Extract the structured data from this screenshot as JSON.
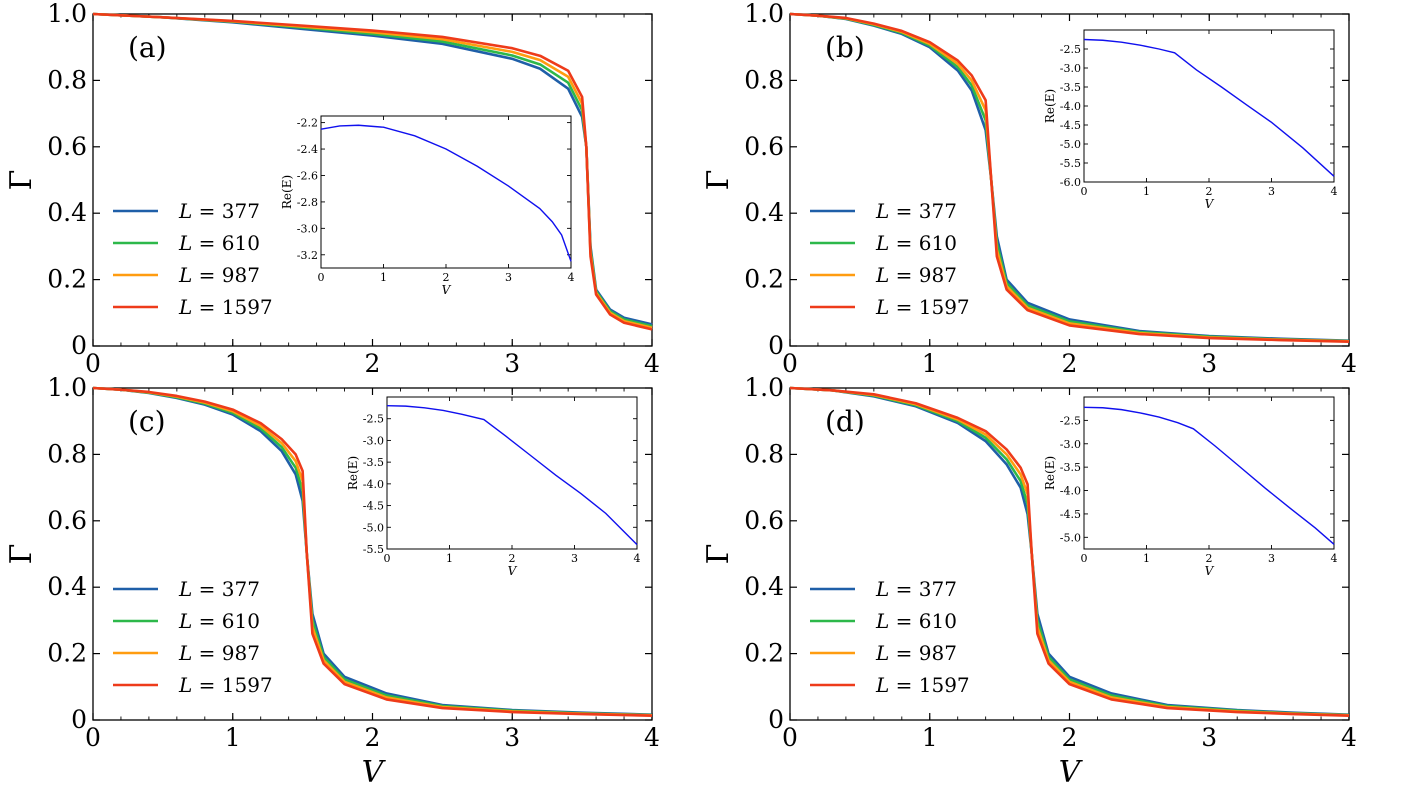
{
  "colors": {
    "L377": "#1f5fa8",
    "L610": "#2db84a",
    "L987": "#ff9c10",
    "L1597": "#ee3b1a",
    "inset_line": "#1010ee",
    "axes": "#000000"
  },
  "chart_data": [
    {
      "type": "line",
      "panel_label": "(a)",
      "xlabel": "",
      "ylabel": "Γ",
      "xlim": [
        0,
        4
      ],
      "ylim": [
        0,
        1.0
      ],
      "xticks": [
        "0",
        "1",
        "2",
        "3",
        "4"
      ],
      "yticks": [
        "0",
        "0.2",
        "0.4",
        "0.6",
        "0.8",
        "1.0"
      ],
      "legend": [
        "L = 377",
        "L = 610",
        "L = 987",
        "L = 1597"
      ],
      "transition": 3.53,
      "series": [
        {
          "name": "L = 377",
          "x": [
            0,
            0.5,
            1,
            1.5,
            2,
            2.5,
            3,
            3.2,
            3.4,
            3.5,
            3.53,
            3.56,
            3.6,
            3.7,
            3.8,
            4.0
          ],
          "y": [
            1.0,
            0.99,
            0.975,
            0.955,
            0.935,
            0.91,
            0.865,
            0.835,
            0.775,
            0.69,
            0.6,
            0.3,
            0.17,
            0.11,
            0.085,
            0.065
          ]
        },
        {
          "name": "L = 610",
          "x": [
            0,
            0.5,
            1,
            1.5,
            2,
            2.5,
            3,
            3.2,
            3.4,
            3.5,
            3.53,
            3.56,
            3.6,
            3.7,
            3.8,
            4.0
          ],
          "y": [
            1.0,
            0.99,
            0.977,
            0.959,
            0.94,
            0.917,
            0.875,
            0.848,
            0.793,
            0.71,
            0.6,
            0.29,
            0.165,
            0.105,
            0.08,
            0.06
          ]
        },
        {
          "name": "L = 987",
          "x": [
            0,
            0.5,
            1,
            1.5,
            2,
            2.5,
            3,
            3.2,
            3.4,
            3.5,
            3.53,
            3.56,
            3.6,
            3.7,
            3.8,
            4.0
          ],
          "y": [
            1.0,
            0.99,
            0.978,
            0.962,
            0.945,
            0.924,
            0.886,
            0.861,
            0.811,
            0.73,
            0.6,
            0.28,
            0.16,
            0.1,
            0.075,
            0.055
          ]
        },
        {
          "name": "L = 1597",
          "x": [
            0,
            0.5,
            1,
            1.5,
            2,
            2.5,
            3,
            3.2,
            3.4,
            3.5,
            3.53,
            3.56,
            3.6,
            3.7,
            3.8,
            4.0
          ],
          "y": [
            1.0,
            0.99,
            0.979,
            0.965,
            0.95,
            0.931,
            0.897,
            0.874,
            0.829,
            0.75,
            0.6,
            0.27,
            0.155,
            0.095,
            0.07,
            0.05
          ]
        }
      ],
      "inset": {
        "xlabel": "V",
        "ylabel": "Re(E)",
        "xlim": [
          0,
          4
        ],
        "ylim": [
          -3.3,
          -2.15
        ],
        "xticks": [
          "0",
          "1",
          "2",
          "3",
          "4"
        ],
        "yticks": [
          "-2.2",
          "-2.4",
          "-2.6",
          "-2.8",
          "-3.0",
          "-3.2"
        ],
        "x": [
          0,
          0.3,
          0.6,
          1.0,
          1.5,
          2.0,
          2.5,
          3.0,
          3.5,
          3.7,
          3.85,
          4.0
        ],
        "y": [
          -2.25,
          -2.225,
          -2.22,
          -2.235,
          -2.3,
          -2.4,
          -2.53,
          -2.68,
          -2.85,
          -2.95,
          -3.05,
          -3.25
        ]
      }
    },
    {
      "type": "line",
      "panel_label": "(b)",
      "xlabel": "",
      "ylabel": "Γ",
      "xlim": [
        0,
        4
      ],
      "ylim": [
        0,
        1.0
      ],
      "xticks": [
        "0",
        "1",
        "2",
        "3",
        "4"
      ],
      "yticks": [
        "0",
        "0.2",
        "0.4",
        "0.6",
        "0.8",
        "1.0"
      ],
      "legend": [
        "L = 377",
        "L = 610",
        "L = 987",
        "L = 1597"
      ],
      "transition": 1.44,
      "series": [
        {
          "name": "L = 377",
          "x": [
            0,
            0.2,
            0.4,
            0.6,
            0.8,
            1.0,
            1.2,
            1.3,
            1.4,
            1.44,
            1.48,
            1.55,
            1.7,
            2.0,
            2.5,
            3.0,
            3.5,
            4.0
          ],
          "y": [
            1.0,
            0.995,
            0.985,
            0.965,
            0.94,
            0.9,
            0.83,
            0.77,
            0.65,
            0.5,
            0.33,
            0.2,
            0.13,
            0.08,
            0.045,
            0.03,
            0.022,
            0.016
          ]
        },
        {
          "name": "L = 610",
          "x": [
            0,
            0.2,
            0.4,
            0.6,
            0.8,
            1.0,
            1.2,
            1.3,
            1.4,
            1.44,
            1.48,
            1.55,
            1.7,
            2.0,
            2.5,
            3.0,
            3.5,
            4.0
          ],
          "y": [
            1.0,
            0.995,
            0.986,
            0.967,
            0.943,
            0.905,
            0.84,
            0.785,
            0.68,
            0.5,
            0.31,
            0.19,
            0.122,
            0.074,
            0.042,
            0.028,
            0.02,
            0.015
          ]
        },
        {
          "name": "L = 987",
          "x": [
            0,
            0.2,
            0.4,
            0.6,
            0.8,
            1.0,
            1.2,
            1.3,
            1.4,
            1.44,
            1.48,
            1.55,
            1.7,
            2.0,
            2.5,
            3.0,
            3.5,
            4.0
          ],
          "y": [
            1.0,
            0.995,
            0.987,
            0.969,
            0.946,
            0.91,
            0.85,
            0.8,
            0.71,
            0.5,
            0.29,
            0.18,
            0.115,
            0.068,
            0.039,
            0.026,
            0.019,
            0.014
          ]
        },
        {
          "name": "L = 1597",
          "x": [
            0,
            0.2,
            0.4,
            0.6,
            0.8,
            1.0,
            1.2,
            1.3,
            1.4,
            1.44,
            1.48,
            1.55,
            1.7,
            2.0,
            2.5,
            3.0,
            3.5,
            4.0
          ],
          "y": [
            1.0,
            0.995,
            0.988,
            0.971,
            0.949,
            0.915,
            0.86,
            0.815,
            0.74,
            0.5,
            0.27,
            0.17,
            0.108,
            0.062,
            0.036,
            0.024,
            0.018,
            0.013
          ]
        }
      ],
      "inset": {
        "xlabel": "V",
        "ylabel": "Re(E)",
        "xlim": [
          0,
          4
        ],
        "ylim": [
          -6.0,
          -2.0
        ],
        "xticks": [
          "0",
          "1",
          "2",
          "3",
          "4"
        ],
        "yticks": [
          "-2.5",
          "-3.0",
          "-3.5",
          "-4.0",
          "-4.5",
          "-5.0",
          "-5.5",
          "-6.0"
        ],
        "x": [
          0,
          0.3,
          0.6,
          0.9,
          1.2,
          1.45,
          1.8,
          2.2,
          2.6,
          3.0,
          3.5,
          4.0
        ],
        "y": [
          -2.25,
          -2.27,
          -2.32,
          -2.4,
          -2.5,
          -2.6,
          -3.05,
          -3.5,
          -3.97,
          -4.43,
          -5.1,
          -5.85
        ]
      }
    },
    {
      "type": "line",
      "panel_label": "(c)",
      "xlabel": "V",
      "ylabel": "Γ",
      "xlim": [
        0,
        4
      ],
      "ylim": [
        0,
        1.0
      ],
      "xticks": [
        "0",
        "1",
        "2",
        "3",
        "4"
      ],
      "yticks": [
        "0",
        "0.2",
        "0.4",
        "0.6",
        "0.8",
        "1.0"
      ],
      "legend": [
        "L = 377",
        "L = 610",
        "L = 987",
        "L = 1597"
      ],
      "transition": 1.53,
      "series": [
        {
          "name": "L = 377",
          "x": [
            0,
            0.2,
            0.4,
            0.6,
            0.8,
            1.0,
            1.2,
            1.35,
            1.45,
            1.5,
            1.53,
            1.57,
            1.65,
            1.8,
            2.1,
            2.5,
            3.0,
            3.5,
            4.0
          ],
          "y": [
            1.0,
            0.995,
            0.985,
            0.97,
            0.95,
            0.92,
            0.87,
            0.81,
            0.74,
            0.66,
            0.5,
            0.32,
            0.2,
            0.13,
            0.08,
            0.045,
            0.03,
            0.022,
            0.016
          ]
        },
        {
          "name": "L = 610",
          "x": [
            0,
            0.2,
            0.4,
            0.6,
            0.8,
            1.0,
            1.2,
            1.35,
            1.45,
            1.5,
            1.53,
            1.57,
            1.65,
            1.8,
            2.1,
            2.5,
            3.0,
            3.5,
            4.0
          ],
          "y": [
            1.0,
            0.995,
            0.986,
            0.972,
            0.953,
            0.925,
            0.878,
            0.822,
            0.76,
            0.69,
            0.5,
            0.3,
            0.19,
            0.122,
            0.074,
            0.042,
            0.028,
            0.02,
            0.015
          ]
        },
        {
          "name": "L = 987",
          "x": [
            0,
            0.2,
            0.4,
            0.6,
            0.8,
            1.0,
            1.2,
            1.35,
            1.45,
            1.5,
            1.53,
            1.57,
            1.65,
            1.8,
            2.1,
            2.5,
            3.0,
            3.5,
            4.0
          ],
          "y": [
            1.0,
            0.995,
            0.987,
            0.974,
            0.956,
            0.93,
            0.886,
            0.834,
            0.78,
            0.72,
            0.5,
            0.28,
            0.18,
            0.115,
            0.068,
            0.039,
            0.026,
            0.019,
            0.014
          ]
        },
        {
          "name": "L = 1597",
          "x": [
            0,
            0.2,
            0.4,
            0.6,
            0.8,
            1.0,
            1.2,
            1.35,
            1.45,
            1.5,
            1.53,
            1.57,
            1.65,
            1.8,
            2.1,
            2.5,
            3.0,
            3.5,
            4.0
          ],
          "y": [
            1.0,
            0.995,
            0.988,
            0.976,
            0.959,
            0.935,
            0.894,
            0.846,
            0.8,
            0.75,
            0.5,
            0.26,
            0.17,
            0.108,
            0.062,
            0.036,
            0.024,
            0.018,
            0.013
          ]
        }
      ],
      "inset": {
        "xlabel": "V",
        "ylabel": "Re(E)",
        "xlim": [
          0,
          4
        ],
        "ylim": [
          -5.5,
          -2.0
        ],
        "xticks": [
          "0",
          "1",
          "2",
          "3",
          "4"
        ],
        "yticks": [
          "-2.5",
          "-3.0",
          "-3.5",
          "-4.0",
          "-4.5",
          "-5.0",
          "-5.5"
        ],
        "x": [
          0,
          0.3,
          0.6,
          0.9,
          1.2,
          1.55,
          1.9,
          2.3,
          2.7,
          3.1,
          3.5,
          4.0
        ],
        "y": [
          -2.2,
          -2.21,
          -2.25,
          -2.31,
          -2.4,
          -2.52,
          -2.9,
          -3.35,
          -3.8,
          -4.22,
          -4.68,
          -5.4
        ]
      }
    },
    {
      "type": "line",
      "panel_label": "(d)",
      "xlabel": "V",
      "ylabel": "Γ",
      "xlim": [
        0,
        4
      ],
      "ylim": [
        0,
        1.0
      ],
      "xticks": [
        "0",
        "1",
        "2",
        "3",
        "4"
      ],
      "yticks": [
        "0",
        "0.2",
        "0.4",
        "0.6",
        "0.8",
        "1.0"
      ],
      "legend": [
        "L = 377",
        "L = 610",
        "L = 987",
        "L = 1597"
      ],
      "transition": 1.73,
      "series": [
        {
          "name": "L = 377",
          "x": [
            0,
            0.3,
            0.6,
            0.9,
            1.2,
            1.4,
            1.55,
            1.65,
            1.7,
            1.73,
            1.77,
            1.85,
            2.0,
            2.3,
            2.7,
            3.2,
            3.6,
            4.0
          ],
          "y": [
            1.0,
            0.993,
            0.975,
            0.945,
            0.895,
            0.84,
            0.77,
            0.7,
            0.62,
            0.5,
            0.32,
            0.2,
            0.13,
            0.08,
            0.045,
            0.03,
            0.022,
            0.016
          ]
        },
        {
          "name": "L = 610",
          "x": [
            0,
            0.3,
            0.6,
            0.9,
            1.2,
            1.4,
            1.55,
            1.65,
            1.7,
            1.73,
            1.77,
            1.85,
            2.0,
            2.3,
            2.7,
            3.2,
            3.6,
            4.0
          ],
          "y": [
            1.0,
            0.993,
            0.977,
            0.948,
            0.9,
            0.85,
            0.785,
            0.72,
            0.65,
            0.5,
            0.3,
            0.19,
            0.122,
            0.074,
            0.042,
            0.028,
            0.02,
            0.015
          ]
        },
        {
          "name": "L = 987",
          "x": [
            0,
            0.3,
            0.6,
            0.9,
            1.2,
            1.4,
            1.55,
            1.65,
            1.7,
            1.73,
            1.77,
            1.85,
            2.0,
            2.3,
            2.7,
            3.2,
            3.6,
            4.0
          ],
          "y": [
            1.0,
            0.993,
            0.979,
            0.951,
            0.905,
            0.86,
            0.8,
            0.74,
            0.68,
            0.5,
            0.28,
            0.18,
            0.115,
            0.068,
            0.039,
            0.026,
            0.019,
            0.014
          ]
        },
        {
          "name": "L = 1597",
          "x": [
            0,
            0.3,
            0.6,
            0.9,
            1.2,
            1.4,
            1.55,
            1.65,
            1.7,
            1.73,
            1.77,
            1.85,
            2.0,
            2.3,
            2.7,
            3.2,
            3.6,
            4.0
          ],
          "y": [
            1.0,
            0.993,
            0.981,
            0.954,
            0.91,
            0.87,
            0.815,
            0.76,
            0.71,
            0.5,
            0.26,
            0.17,
            0.108,
            0.062,
            0.036,
            0.024,
            0.018,
            0.013
          ]
        }
      ],
      "inset": {
        "xlabel": "V",
        "ylabel": "Re(E)",
        "xlim": [
          0,
          4
        ],
        "ylim": [
          -5.25,
          -2.0
        ],
        "xticks": [
          "0",
          "1",
          "2",
          "3",
          "4"
        ],
        "yticks": [
          "-2.5",
          "-3.0",
          "-3.5",
          "-4.0",
          "-4.5",
          "-5.0"
        ],
        "x": [
          0,
          0.3,
          0.6,
          0.9,
          1.2,
          1.5,
          1.75,
          2.1,
          2.5,
          2.9,
          3.3,
          3.7,
          4.0
        ],
        "y": [
          -2.22,
          -2.23,
          -2.27,
          -2.34,
          -2.43,
          -2.55,
          -2.68,
          -3.05,
          -3.5,
          -3.95,
          -4.38,
          -4.8,
          -5.15
        ]
      }
    }
  ]
}
